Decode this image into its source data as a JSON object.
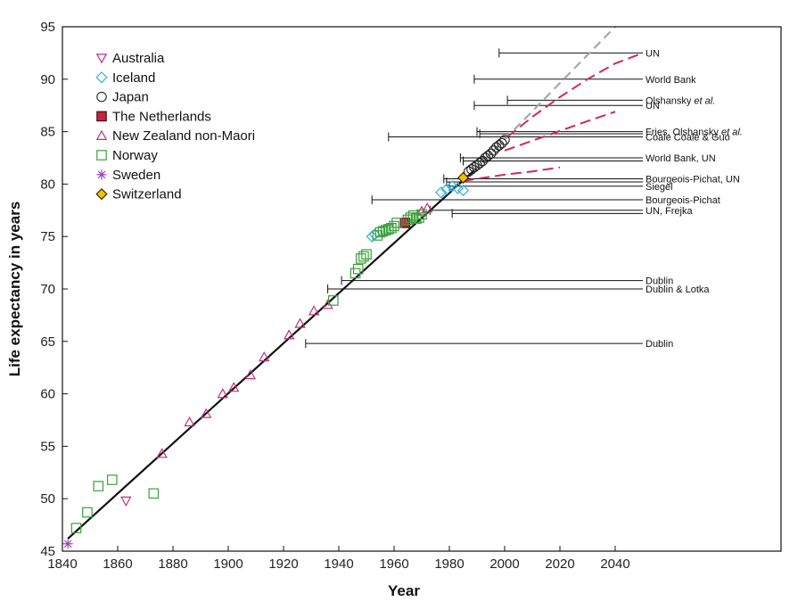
{
  "chart_data": {
    "type": "scatter",
    "xlabel": "Year",
    "ylabel": "Life expectancy in years",
    "xlim": [
      1840,
      2100
    ],
    "ylim": [
      45,
      95
    ],
    "xticks": [
      1840,
      1860,
      1880,
      1900,
      1920,
      1940,
      1960,
      1980,
      2000,
      2020,
      2040
    ],
    "yticks": [
      45,
      50,
      55,
      60,
      65,
      70,
      75,
      80,
      85,
      90,
      95
    ],
    "legend_position": "top-left",
    "trend_line": {
      "x": [
        1842,
        1989
      ],
      "y": [
        46.2,
        81.3
      ],
      "color": "#111111"
    },
    "trend_extension": {
      "x": [
        1989,
        2040
      ],
      "y": [
        81.3,
        95.0
      ],
      "color": "#a8a8a8",
      "dash": true
    },
    "series": [
      {
        "name": "Australia",
        "marker": "triangle-down",
        "color": "#c0307a",
        "points": [
          [
            1863,
            49.8
          ]
        ]
      },
      {
        "name": "Iceland",
        "marker": "diamond",
        "color": "#33b0dd",
        "points": [
          [
            1952,
            75.0
          ],
          [
            1953,
            75.2
          ],
          [
            1977,
            79.2
          ],
          [
            1979,
            79.5
          ],
          [
            1981,
            79.8
          ],
          [
            1983,
            79.6
          ],
          [
            1985,
            79.4
          ]
        ]
      },
      {
        "name": "Japan",
        "marker": "circle",
        "color": "#222222",
        "points": [
          [
            1987,
            81.2
          ],
          [
            1988,
            81.4
          ],
          [
            1989,
            81.6
          ],
          [
            1990,
            81.8
          ],
          [
            1991,
            82.0
          ],
          [
            1992,
            82.2
          ],
          [
            1993,
            82.5
          ],
          [
            1994,
            82.7
          ],
          [
            1995,
            82.9
          ],
          [
            1996,
            83.2
          ],
          [
            1997,
            83.5
          ],
          [
            1998,
            83.7
          ],
          [
            1999,
            83.9
          ],
          [
            2000,
            84.2
          ]
        ]
      },
      {
        "name": "The Netherlands",
        "marker": "square-filled",
        "color": "#c8243c",
        "points": [
          [
            1964,
            76.3
          ]
        ]
      },
      {
        "name": "New Zealand non-Maori",
        "marker": "triangle-up",
        "color": "#c0307a",
        "points": [
          [
            1876,
            54.3
          ],
          [
            1886,
            57.3
          ],
          [
            1892,
            58.1
          ],
          [
            1898,
            60.0
          ],
          [
            1902,
            60.6
          ],
          [
            1908,
            61.8
          ],
          [
            1913,
            63.5
          ],
          [
            1922,
            65.6
          ],
          [
            1926,
            66.7
          ],
          [
            1931,
            67.9
          ],
          [
            1936,
            68.5
          ],
          [
            1970,
            77.4
          ],
          [
            1972,
            77.7
          ]
        ]
      },
      {
        "name": "Norway",
        "marker": "square",
        "color": "#3aa03a",
        "points": [
          [
            1845,
            47.2
          ],
          [
            1849,
            48.7
          ],
          [
            1853,
            51.2
          ],
          [
            1858,
            51.8
          ],
          [
            1873,
            50.5
          ],
          [
            1938,
            68.9
          ],
          [
            1946,
            71.5
          ],
          [
            1947,
            71.9
          ],
          [
            1948,
            72.9
          ],
          [
            1949,
            73.1
          ],
          [
            1950,
            73.3
          ],
          [
            1954,
            75.1
          ],
          [
            1955,
            75.4
          ],
          [
            1956,
            75.5
          ],
          [
            1957,
            75.6
          ],
          [
            1958,
            75.7
          ],
          [
            1959,
            75.8
          ],
          [
            1960,
            76.0
          ],
          [
            1961,
            76.3
          ],
          [
            1965,
            76.6
          ],
          [
            1966,
            76.8
          ],
          [
            1967,
            77.0
          ],
          [
            1968,
            76.7
          ],
          [
            1969,
            76.8
          ],
          [
            1970,
            77.1
          ]
        ]
      },
      {
        "name": "Sweden",
        "marker": "asterisk",
        "color": "#a040b0",
        "points": [
          [
            1842,
            45.7
          ]
        ]
      },
      {
        "name": "Switzerland",
        "marker": "diamond-filled",
        "color": "#f2c200",
        "points": [
          [
            1985,
            80.6
          ]
        ]
      }
    ],
    "forecast_curves": [
      {
        "color": "#d02860",
        "x": [
          2001,
          2010,
          2020,
          2030,
          2040,
          2050
        ],
        "y": [
          84.5,
          86.4,
          88.3,
          90.0,
          91.5,
          92.5
        ]
      },
      {
        "color": "#d02860",
        "x": [
          2000,
          2015,
          2030,
          2040
        ],
        "y": [
          83.2,
          84.6,
          86.0,
          86.9
        ]
      },
      {
        "color": "#d02860",
        "x": [
          1985,
          2000,
          2010,
          2020
        ],
        "y": [
          80.3,
          80.9,
          81.2,
          81.6
        ]
      }
    ],
    "ceilings": [
      {
        "label": "UN",
        "label_italic": "",
        "label_tail": "",
        "y": 92.5,
        "x_start": 1998
      },
      {
        "label": "World Bank",
        "label_italic": "",
        "label_tail": "",
        "y": 90.0,
        "x_start": 1989
      },
      {
        "label": "Olshansky ",
        "label_italic": "et al.",
        "label_tail": "",
        "y": 88.0,
        "x_start": 2001
      },
      {
        "label": "UN",
        "label_italic": "",
        "label_tail": "",
        "y": 87.5,
        "x_start": 1989
      },
      {
        "label": "Fries, Olshansky ",
        "label_italic": "et al.",
        "label_tail": "",
        "y": 85.0,
        "x_start": 1990
      },
      {
        "label": "Coale   Coale & Guo",
        "label_italic": "",
        "label_tail": "",
        "y": 84.5,
        "x_start": 1958
      },
      {
        "label": "",
        "label_italic": "",
        "label_tail": "",
        "y": 84.8,
        "x_start": 1991
      },
      {
        "label": "World Bank, UN",
        "label_italic": "",
        "label_tail": "",
        "y": 82.5,
        "x_start": 1984
      },
      {
        "label": "",
        "label_italic": "",
        "label_tail": "",
        "y": 82.2,
        "x_start": 1985
      },
      {
        "label": "Bourgeois-Pichat, UN",
        "label_italic": "",
        "label_tail": "",
        "y": 80.5,
        "x_start": 1978
      },
      {
        "label": "",
        "label_italic": "",
        "label_tail": "",
        "y": 80.2,
        "x_start": 1979
      },
      {
        "label": "Siegel",
        "label_italic": "",
        "label_tail": "",
        "y": 79.8,
        "x_start": 1980
      },
      {
        "label": "Bourgeois-Pichat",
        "label_italic": "",
        "label_tail": "",
        "y": 78.5,
        "x_start": 1952
      },
      {
        "label": "UN, Frejka",
        "label_italic": "",
        "label_tail": "",
        "y": 77.5,
        "x_start": 1973
      },
      {
        "label": "",
        "label_italic": "",
        "label_tail": "",
        "y": 77.2,
        "x_start": 1981
      },
      {
        "label": "Dublin",
        "label_italic": "",
        "label_tail": "",
        "y": 70.8,
        "x_start": 1941
      },
      {
        "label": "Dublin & Lotka",
        "label_italic": "",
        "label_tail": "",
        "y": 70.0,
        "x_start": 1936
      },
      {
        "label": "Dublin",
        "label_italic": "",
        "label_tail": "",
        "y": 64.8,
        "x_start": 1928
      }
    ]
  }
}
